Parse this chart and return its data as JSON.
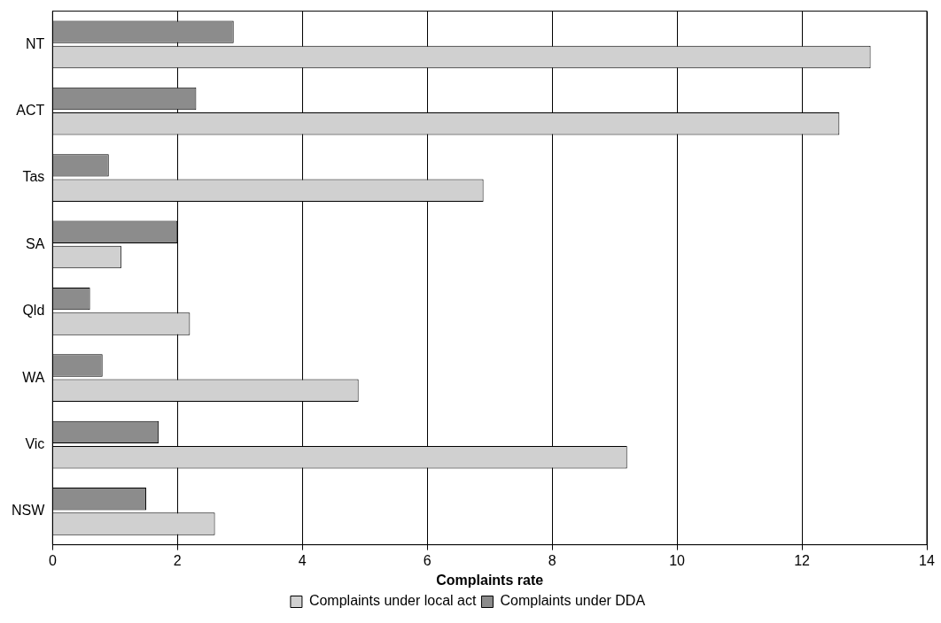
{
  "chart_data": {
    "type": "bar",
    "orientation": "horizontal",
    "xlabel": "Complaints rate",
    "categories": [
      "NT",
      "ACT",
      "Tas",
      "SA",
      "Qld",
      "WA",
      "Vic",
      "NSW"
    ],
    "series": [
      {
        "name": "Complaints under local act",
        "color": "#d0d0d0",
        "values": [
          13.1,
          12.6,
          6.9,
          1.1,
          2.2,
          4.9,
          9.2,
          2.6
        ]
      },
      {
        "name": "Complaints under DDA",
        "color": "#8c8c8c",
        "values": [
          2.9,
          2.3,
          0.9,
          2.0,
          0.6,
          0.8,
          1.7,
          1.5
        ]
      }
    ],
    "xlim": [
      0,
      14
    ],
    "xticks": [
      0,
      2,
      4,
      6,
      8,
      10,
      12,
      14
    ],
    "grid": "x",
    "legend": "bottom"
  }
}
